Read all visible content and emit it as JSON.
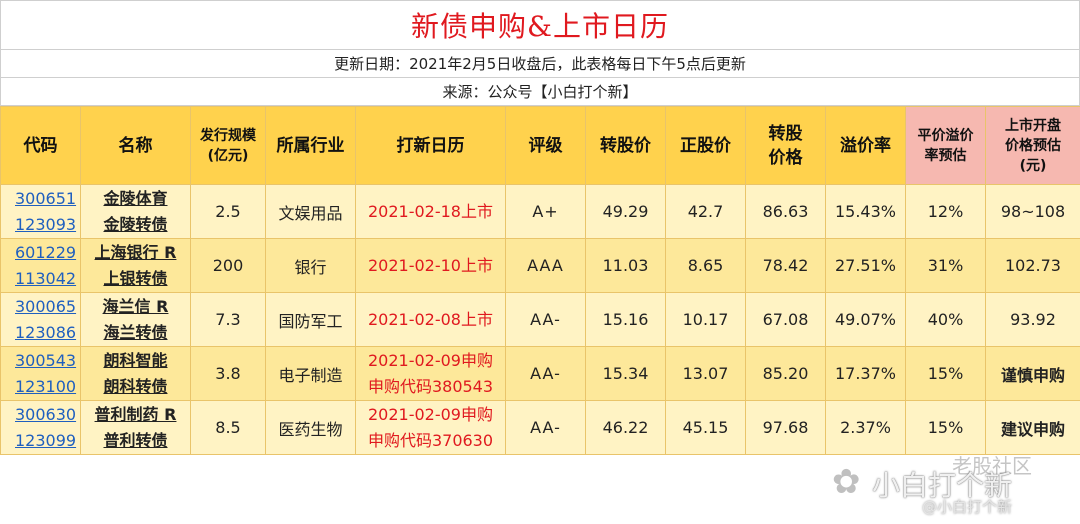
{
  "title": "新债申购&上市日历",
  "update_line": "更新日期：2021年2月5日收盘后，此表格每日下午5点后更新",
  "source_line": "来源：公众号【小白打个新】",
  "headers": {
    "code": "代码",
    "name": "名称",
    "scale_line1": "发行规模",
    "scale_line2": "(亿元)",
    "industry": "所属行业",
    "calendar": "打新日历",
    "rating": "评级",
    "conv_price": "转股价",
    "stock_price": "正股价",
    "conv_value_line1": "转股",
    "conv_value_line2": "价格",
    "premium": "溢价率",
    "avg_premium_line1": "平价溢价",
    "avg_premium_line2": "率预估",
    "open_price_line1": "上市开盘",
    "open_price_line2": "价格预估",
    "open_price_line3": "(元)"
  },
  "rows": [
    {
      "stock_code": "300651",
      "bond_code": "123093",
      "stock_name": "金陵体育",
      "bond_name": "金陵转债",
      "scale": "2.5",
      "industry": "文娱用品",
      "calendar_line1": "2021-02-18上市",
      "calendar_line2": "",
      "rating": "A+",
      "conv_price": "49.29",
      "stock_price": "42.7",
      "conv_value": "86.63",
      "premium": "15.43%",
      "avg_premium": "12%",
      "open_price": "98~108"
    },
    {
      "stock_code": "601229",
      "bond_code": "113042",
      "stock_name": "上海银行 R",
      "bond_name": "上银转债",
      "scale": "200",
      "industry": "银行",
      "calendar_line1": "2021-02-10上市",
      "calendar_line2": "",
      "rating": "AAA",
      "conv_price": "11.03",
      "stock_price": "8.65",
      "conv_value": "78.42",
      "premium": "27.51%",
      "avg_premium": "31%",
      "open_price": "102.73"
    },
    {
      "stock_code": "300065",
      "bond_code": "123086",
      "stock_name": "海兰信 R",
      "bond_name": "海兰转债",
      "scale": "7.3",
      "industry": "国防军工",
      "calendar_line1": "2021-02-08上市",
      "calendar_line2": "",
      "rating": "AA-",
      "conv_price": "15.16",
      "stock_price": "10.17",
      "conv_value": "67.08",
      "premium": "49.07%",
      "avg_premium": "40%",
      "open_price": "93.92"
    },
    {
      "stock_code": "300543",
      "bond_code": "123100",
      "stock_name": "朗科智能",
      "bond_name": "朗科转债",
      "scale": "3.8",
      "industry": "电子制造",
      "calendar_line1": "2021-02-09申购",
      "calendar_line2": "申购代码380543",
      "rating": "AA-",
      "conv_price": "15.34",
      "stock_price": "13.07",
      "conv_value": "85.20",
      "premium": "17.37%",
      "avg_premium": "15%",
      "open_price": "谨慎申购"
    },
    {
      "stock_code": "300630",
      "bond_code": "123099",
      "stock_name": "普利制药 R",
      "bond_name": "普利转债",
      "scale": "8.5",
      "industry": "医药生物",
      "calendar_line1": "2021-02-09申购",
      "calendar_line2": "申购代码370630",
      "rating": "AA-",
      "conv_price": "46.22",
      "stock_price": "45.15",
      "conv_value": "97.68",
      "premium": "2.37%",
      "avg_premium": "15%",
      "open_price": "建议申购"
    }
  ],
  "watermark": {
    "main": "小白打个新",
    "top": "老股社区",
    "small": "@小白打个新"
  },
  "colors": {
    "title_red": "#e0191f",
    "header_yellow": "#ffd24d",
    "header_pink": "#f6b8b0",
    "row_light": "#fff3c4",
    "row_dark": "#fde89a",
    "link_blue": "#1f5fbf"
  }
}
